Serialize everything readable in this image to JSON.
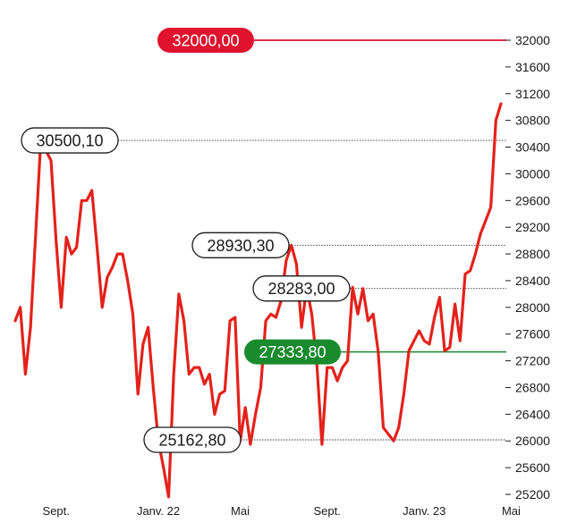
{
  "chart_data": {
    "type": "line",
    "title": "",
    "xlabel": "",
    "ylabel": "",
    "ylim": [
      25000,
      32300
    ],
    "yticks": [
      25200,
      25600,
      26000,
      26400,
      26800,
      27200,
      27600,
      28000,
      28400,
      28800,
      29200,
      29600,
      30000,
      30400,
      30800,
      31200,
      31600,
      32000
    ],
    "ytick_labels": [
      "25200",
      "25600",
      "26000",
      "26400",
      "26800",
      "27200",
      "27600",
      "28000",
      "28400",
      "28800",
      "29200",
      "29600",
      "30000",
      "30400",
      "30800",
      "31200",
      "31600",
      "32000"
    ],
    "xticks": [
      {
        "label": "Sept.",
        "index": 8
      },
      {
        "label": "Janv. 22",
        "index": 28
      },
      {
        "label": "Mai",
        "index": 44
      },
      {
        "label": "Sept.",
        "index": 61
      },
      {
        "label": "Janv. 23",
        "index": 80
      },
      {
        "label": "Mai",
        "index": 97
      }
    ],
    "series": [
      {
        "color": "#e3221b",
        "values": [
          27800,
          28000,
          27000,
          27700,
          29100,
          30500,
          30350,
          30200,
          29000,
          28000,
          29050,
          28800,
          28900,
          29600,
          29600,
          29750,
          28900,
          28000,
          28450,
          28600,
          28800,
          28800,
          28400,
          27900,
          26700,
          27450,
          27700,
          26800,
          26000,
          25600,
          25162.8,
          27000,
          28200,
          27800,
          27000,
          27100,
          27100,
          26850,
          27000,
          26400,
          26700,
          26750,
          27800,
          27850,
          26000,
          26500,
          25950,
          26400,
          26800,
          27800,
          27900,
          27850,
          28100,
          28700,
          28930.3,
          28650,
          27700,
          28300,
          27900,
          27150,
          25950,
          27100,
          27100,
          26900,
          27100,
          27200,
          28300,
          27900,
          28283,
          27800,
          27900,
          27333.8,
          26200,
          26100,
          26000,
          26200,
          26700,
          27350,
          27500,
          27650,
          27500,
          27450,
          27850,
          28150,
          27350,
          27400,
          28050,
          27500,
          28500,
          28550,
          28800,
          29100,
          29300,
          29500,
          30800,
          31050
        ]
      }
    ],
    "reference_lines": [
      {
        "value": 32000,
        "label": "32000,00",
        "style": "target",
        "color": "#e0122e"
      },
      {
        "value": 30500.1,
        "label": "30500,10",
        "style": "level",
        "color": "#1a1a1a"
      },
      {
        "value": 28930.3,
        "label": "28930,30",
        "style": "level",
        "color": "#1a1a1a"
      },
      {
        "value": 28283,
        "label": "28283,00",
        "style": "level",
        "color": "#1a1a1a"
      },
      {
        "value": 27333.8,
        "label": "27333,80",
        "style": "current",
        "color": "#1a8a2e"
      },
      {
        "value": 25162.8,
        "label": "25162,80",
        "style": "level",
        "color": "#1a1a1a"
      }
    ],
    "grid": false,
    "legend": "none"
  }
}
